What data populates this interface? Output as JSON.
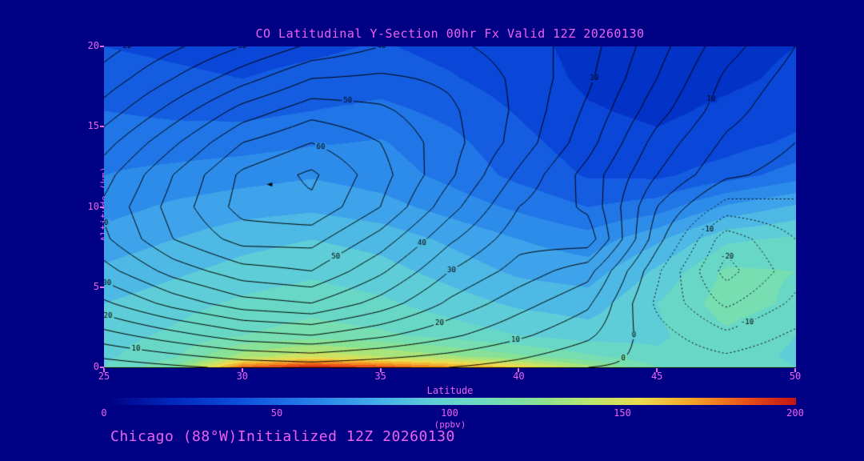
{
  "title": "CO Latitudinal Y-Section 00hr  Fx Valid 12Z 20260130",
  "caption": "Chicago (88°W)Initialized 12Z 20260130",
  "theme": {
    "background": "#000084",
    "accent_text": "#ee62ee",
    "contour_color": "#000000"
  },
  "axes": {
    "x": {
      "label": "Latitude",
      "min": 25,
      "max": 50,
      "ticks": [
        25,
        30,
        35,
        40,
        45,
        50
      ]
    },
    "y": {
      "label": "Altitude (km)",
      "min": 0,
      "max": 20,
      "ticks": [
        0,
        5,
        10,
        15,
        20
      ]
    }
  },
  "colorbar": {
    "label": "(ppbv)",
    "min": 0,
    "max": 200,
    "ticks": [
      0,
      50,
      100,
      150,
      200
    ]
  },
  "chart_data": {
    "type": "heatmap",
    "x_name": "latitude_deg",
    "y_name": "altitude_km",
    "value_name": "CO_ppbv",
    "fill": {
      "lats": [
        25,
        27.5,
        30,
        32.5,
        35,
        37.5,
        40,
        42.5,
        45,
        47.5,
        50
      ],
      "alts": [
        0,
        0.7,
        2,
        4,
        6,
        8,
        10,
        12,
        14,
        16,
        18,
        20
      ],
      "band_step": 10,
      "values": [
        [
          100,
          120,
          185,
          200,
          190,
          175,
          160,
          135,
          110,
          108,
          100
        ],
        [
          98,
          108,
          135,
          148,
          140,
          132,
          122,
          112,
          102,
          106,
          98
        ],
        [
          96,
          102,
          110,
          115,
          112,
          106,
          100,
          95,
          98,
          108,
          100
        ],
        [
          90,
          96,
          102,
          106,
          102,
          95,
          88,
          85,
          100,
          115,
          108
        ],
        [
          82,
          88,
          94,
          98,
          94,
          86,
          78,
          75,
          92,
          112,
          110
        ],
        [
          74,
          80,
          86,
          90,
          86,
          78,
          70,
          64,
          78,
          98,
          102
        ],
        [
          66,
          72,
          76,
          78,
          74,
          66,
          58,
          50,
          55,
          72,
          82
        ],
        [
          60,
          63,
          66,
          69,
          65,
          57,
          47,
          39,
          38,
          45,
          55
        ],
        [
          56,
          55,
          56,
          59,
          61,
          53,
          43,
          35,
          32,
          36,
          42
        ],
        [
          50,
          48,
          47,
          50,
          53,
          47,
          39,
          31,
          28,
          32,
          36
        ],
        [
          44,
          42,
          40,
          43,
          45,
          41,
          35,
          28,
          26,
          28,
          32
        ],
        [
          40,
          38,
          36,
          38,
          41,
          37,
          33,
          27,
          25,
          27,
          30
        ]
      ]
    },
    "colormap_stops": [
      [
        0,
        "#000082"
      ],
      [
        20,
        "#0028be"
      ],
      [
        35,
        "#0a46d7"
      ],
      [
        50,
        "#1969e6"
      ],
      [
        65,
        "#2d8cea"
      ],
      [
        80,
        "#46afea"
      ],
      [
        95,
        "#5fcdd7"
      ],
      [
        110,
        "#6edcbe"
      ],
      [
        125,
        "#87e196"
      ],
      [
        140,
        "#b9e66e"
      ],
      [
        155,
        "#ebdc50"
      ],
      [
        170,
        "#f5a528"
      ],
      [
        185,
        "#eb5519"
      ],
      [
        200,
        "#c31414"
      ]
    ],
    "contour_lines": {
      "lats": [
        25,
        27.5,
        30,
        32.5,
        35,
        37.5,
        40,
        42.5,
        45,
        47.5,
        50
      ],
      "alts": [
        0,
        2,
        4,
        6,
        8,
        10,
        12,
        14,
        16,
        18,
        20
      ],
      "level_min": -25,
      "level_max": 65,
      "level_step": 5,
      "negative_style": "dotted",
      "values": [
        [
          2,
          4,
          6,
          7,
          6,
          5,
          3,
          0,
          -1,
          -2,
          0
        ],
        [
          13,
          18,
          23,
          25,
          21,
          16,
          11,
          6,
          -3,
          -9,
          -4
        ],
        [
          24,
          32,
          38,
          40,
          33,
          24,
          17,
          11,
          -6,
          -16,
          -9
        ],
        [
          33,
          42,
          48,
          50,
          41,
          30,
          23,
          17,
          -4,
          -22,
          -12
        ],
        [
          39,
          50,
          57,
          57,
          48,
          36,
          27,
          28,
          2,
          -18,
          -10
        ],
        [
          41,
          52,
          62,
          64,
          55,
          42,
          30,
          24,
          5,
          -7,
          -6
        ],
        [
          38,
          50,
          61,
          66,
          57,
          46,
          34,
          23,
          10,
          1,
          -2
        ],
        [
          33,
          44,
          55,
          60,
          55,
          47,
          38,
          27,
          13,
          4,
          0
        ],
        [
          27,
          37,
          47,
          53,
          51,
          46,
          39,
          29,
          17,
          7,
          1
        ],
        [
          22,
          30,
          38,
          45,
          46,
          44,
          39,
          31,
          20,
          9,
          3
        ],
        [
          18,
          24,
          30,
          36,
          40,
          41,
          38,
          32,
          22,
          12,
          5
        ]
      ],
      "labels": [
        {
          "v": 20,
          "lat": 26.8,
          "alt": 19.5
        },
        {
          "v": 30,
          "lat": 35.0,
          "alt": 19.3
        },
        {
          "v": 40,
          "lat": 36.3,
          "alt": 18.6
        },
        {
          "v": 50,
          "lat": 33.8,
          "alt": 16.4
        },
        {
          "v": 60,
          "lat": 33.0,
          "alt": 14.2
        },
        {
          "v": 40,
          "lat": 25.7,
          "alt": 9.7
        },
        {
          "v": 30,
          "lat": 25.5,
          "alt": 6.8
        },
        {
          "v": 20,
          "lat": 25.4,
          "alt": 4.4
        },
        {
          "v": 10,
          "lat": 26.3,
          "alt": 3.5
        },
        {
          "v": 50,
          "lat": 33.3,
          "alt": 7.2
        },
        {
          "v": 40,
          "lat": 35.3,
          "alt": 10.1
        },
        {
          "v": 30,
          "lat": 36.5,
          "alt": 8.8
        },
        {
          "v": 20,
          "lat": 36.6,
          "alt": 5.4
        },
        {
          "v": 10,
          "lat": 39.8,
          "alt": 2.6
        },
        {
          "v": 30,
          "lat": 44.5,
          "alt": 16.8
        },
        {
          "v": 10,
          "lat": 48.2,
          "alt": 15.7
        },
        {
          "v": 0,
          "lat": 43.8,
          "alt": 0.6
        },
        {
          "v": 0,
          "lat": 47.6,
          "alt": 1.2
        },
        {
          "v": -10,
          "lat": 45.9,
          "alt": 10.3
        },
        {
          "v": -20,
          "lat": 47.3,
          "alt": 8.5
        },
        {
          "v": -10,
          "lat": 48.0,
          "alt": 3.8
        }
      ]
    },
    "max_marker": {
      "lat": 31,
      "alt": 11.4
    }
  }
}
